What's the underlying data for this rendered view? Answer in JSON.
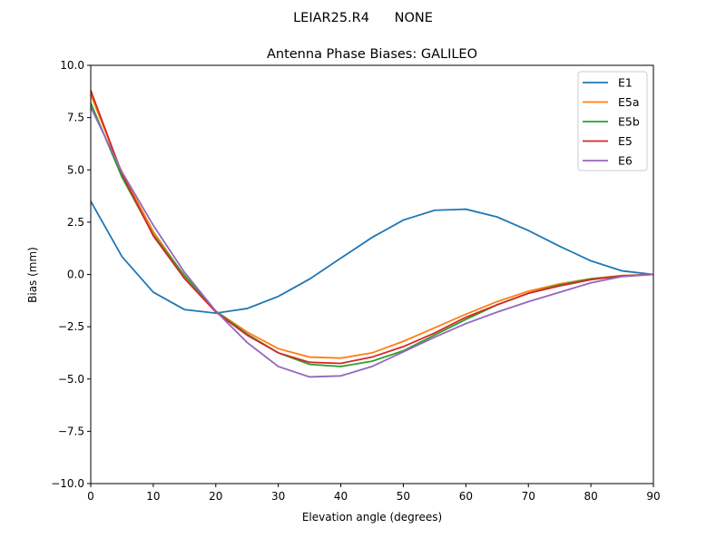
{
  "chart_data": {
    "type": "line",
    "suptitle": "LEIAR25.R4      NONE",
    "title": "Antenna Phase Biases: GALILEO",
    "xlabel": "Elevation angle (degrees)",
    "ylabel": "Bias (mm)",
    "xlim": [
      0,
      90
    ],
    "ylim": [
      -10,
      10
    ],
    "xticks": [
      0,
      10,
      20,
      30,
      40,
      50,
      60,
      70,
      80,
      90
    ],
    "xtick_labels": [
      "0",
      "10",
      "20",
      "30",
      "40",
      "50",
      "60",
      "70",
      "80",
      "90"
    ],
    "yticks": [
      -10,
      -7.5,
      -5,
      -2.5,
      0,
      2.5,
      5,
      7.5,
      10
    ],
    "ytick_labels": [
      "−10.0",
      "−7.5",
      "−5.0",
      "−2.5",
      "0.0",
      "2.5",
      "5.0",
      "7.5",
      "10.0"
    ],
    "grid": false,
    "legend_position": "top-right",
    "x": [
      0,
      5,
      10,
      15,
      20,
      25,
      30,
      35,
      40,
      45,
      50,
      55,
      60,
      65,
      70,
      75,
      80,
      85,
      90
    ],
    "series": [
      {
        "name": "E1",
        "color": "#1f77b4",
        "values": [
          3.5,
          0.85,
          -0.85,
          -1.68,
          -1.85,
          -1.63,
          -1.05,
          -0.22,
          0.78,
          1.77,
          2.6,
          3.07,
          3.12,
          2.75,
          2.1,
          1.35,
          0.65,
          0.17,
          0
        ]
      },
      {
        "name": "E5a",
        "color": "#ff7f0e",
        "values": [
          8.6,
          4.85,
          2.05,
          -0.1,
          -1.75,
          -2.75,
          -3.55,
          -3.95,
          -4.0,
          -3.75,
          -3.2,
          -2.55,
          -1.9,
          -1.3,
          -0.8,
          -0.45,
          -0.2,
          -0.05,
          0
        ]
      },
      {
        "name": "E5b",
        "color": "#2ca02c",
        "values": [
          8.2,
          4.65,
          1.9,
          -0.05,
          -1.75,
          -2.85,
          -3.75,
          -4.3,
          -4.4,
          -4.15,
          -3.65,
          -2.9,
          -2.15,
          -1.45,
          -0.9,
          -0.5,
          -0.22,
          -0.07,
          0
        ]
      },
      {
        "name": "E5",
        "color": "#d62728",
        "values": [
          8.8,
          4.8,
          1.85,
          -0.2,
          -1.8,
          -2.9,
          -3.75,
          -4.2,
          -4.25,
          -3.95,
          -3.45,
          -2.8,
          -2.05,
          -1.45,
          -0.9,
          -0.55,
          -0.25,
          -0.07,
          0
        ]
      },
      {
        "name": "E6",
        "color": "#9467bd",
        "values": [
          8.0,
          4.9,
          2.35,
          0.1,
          -1.75,
          -3.25,
          -4.4,
          -4.9,
          -4.85,
          -4.4,
          -3.7,
          -3.0,
          -2.35,
          -1.8,
          -1.3,
          -0.85,
          -0.4,
          -0.1,
          0
        ]
      }
    ]
  }
}
